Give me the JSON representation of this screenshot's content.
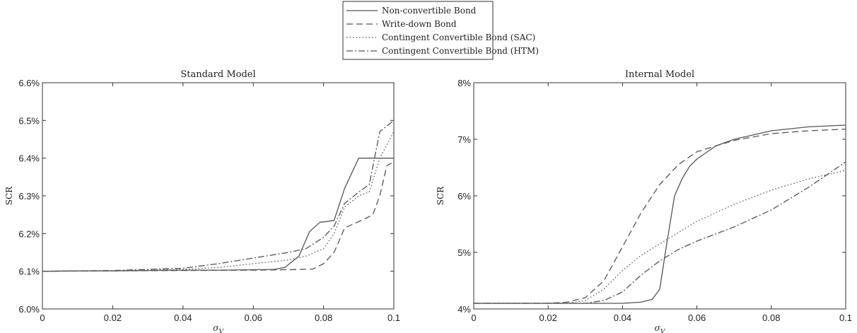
{
  "legend": {
    "items": [
      {
        "label": "Non-convertible Bond",
        "style": "solid"
      },
      {
        "label": "Write-down Bond",
        "style": "dashed"
      },
      {
        "label": "Contingent Convertible Bond (SAC)",
        "style": "dotted"
      },
      {
        "label": "Contingent Convertible Bond (HTM)",
        "style": "dashdot"
      }
    ]
  },
  "chart_data": [
    {
      "type": "line",
      "title": "Standard Model",
      "xlabel": "σ_V",
      "ylabel": "SCR",
      "xlim": [
        0,
        0.1
      ],
      "ylim": [
        6.0,
        6.6
      ],
      "xticks": [
        0,
        0.02,
        0.04,
        0.06,
        0.08,
        0.1
      ],
      "xtick_labels": [
        "0",
        "0.02",
        "0.04",
        "0.06",
        "0.08",
        "0.1"
      ],
      "yticks": [
        6.0,
        6.1,
        6.2,
        6.3,
        6.4,
        6.5,
        6.6
      ],
      "ytick_labels": [
        "6.0%",
        "6.1%",
        "6.2%",
        "6.3%",
        "6.4%",
        "6.5%",
        "6.6%"
      ],
      "series": [
        {
          "name": "Non-convertible Bond",
          "style": "solid",
          "x": [
            0,
            0.01,
            0.02,
            0.03,
            0.04,
            0.05,
            0.06,
            0.066,
            0.069,
            0.073,
            0.076,
            0.079,
            0.081,
            0.083,
            0.086,
            0.09,
            0.095,
            0.1
          ],
          "y": [
            6.1,
            6.101,
            6.101,
            6.102,
            6.103,
            6.103,
            6.104,
            6.105,
            6.11,
            6.14,
            6.205,
            6.23,
            6.232,
            6.235,
            6.32,
            6.4,
            6.4,
            6.4
          ]
        },
        {
          "name": "Write-down Bond",
          "style": "dashed",
          "x": [
            0,
            0.02,
            0.04,
            0.06,
            0.07,
            0.077,
            0.08,
            0.083,
            0.086,
            0.092,
            0.094,
            0.096,
            0.098,
            0.1
          ],
          "y": [
            6.1,
            6.101,
            6.102,
            6.103,
            6.104,
            6.106,
            6.12,
            6.15,
            6.215,
            6.24,
            6.25,
            6.3,
            6.38,
            6.39
          ]
        },
        {
          "name": "Contingent Convertible Bond (SAC)",
          "style": "dotted",
          "x": [
            0,
            0.02,
            0.04,
            0.05,
            0.06,
            0.07,
            0.075,
            0.08,
            0.083,
            0.086,
            0.09,
            0.093,
            0.096,
            0.1
          ],
          "y": [
            6.1,
            6.101,
            6.105,
            6.11,
            6.12,
            6.13,
            6.14,
            6.16,
            6.2,
            6.27,
            6.3,
            6.31,
            6.4,
            6.47
          ]
        },
        {
          "name": "Contingent Convertible Bond (HTM)",
          "style": "dashdot",
          "x": [
            0,
            0.02,
            0.04,
            0.05,
            0.06,
            0.07,
            0.075,
            0.08,
            0.083,
            0.086,
            0.09,
            0.093,
            0.096,
            0.1
          ],
          "y": [
            6.1,
            6.102,
            6.108,
            6.12,
            6.135,
            6.15,
            6.16,
            6.19,
            6.22,
            6.28,
            6.31,
            6.33,
            6.47,
            6.5
          ]
        }
      ]
    },
    {
      "type": "line",
      "title": "Internal Model",
      "xlabel": "σ_V",
      "ylabel": "SCR",
      "xlim": [
        0,
        0.1
      ],
      "ylim": [
        4,
        8
      ],
      "xticks": [
        0,
        0.02,
        0.04,
        0.06,
        0.08,
        0.1
      ],
      "xtick_labels": [
        "0",
        "0.02",
        "0.04",
        "0.06",
        "0.08",
        "0.1"
      ],
      "yticks": [
        4,
        5,
        6,
        7,
        8
      ],
      "ytick_labels": [
        "4%",
        "5%",
        "6%",
        "7%",
        "8%"
      ],
      "series": [
        {
          "name": "Non-convertible Bond",
          "style": "solid",
          "x": [
            0,
            0.02,
            0.04,
            0.045,
            0.048,
            0.05,
            0.052,
            0.054,
            0.056,
            0.058,
            0.06,
            0.065,
            0.07,
            0.08,
            0.09,
            0.1
          ],
          "y": [
            4.1,
            4.1,
            4.1,
            4.12,
            4.17,
            4.35,
            5.2,
            6.0,
            6.3,
            6.52,
            6.65,
            6.88,
            7.0,
            7.15,
            7.22,
            7.25
          ]
        },
        {
          "name": "Write-down Bond",
          "style": "dashed",
          "x": [
            0,
            0.02,
            0.025,
            0.03,
            0.035,
            0.04,
            0.045,
            0.05,
            0.055,
            0.06,
            0.07,
            0.08,
            0.09,
            0.1
          ],
          "y": [
            4.1,
            4.1,
            4.12,
            4.2,
            4.5,
            5.1,
            5.7,
            6.2,
            6.55,
            6.78,
            6.98,
            7.1,
            7.15,
            7.18
          ]
        },
        {
          "name": "Contingent Convertible Bond (SAC)",
          "style": "dotted",
          "x": [
            0,
            0.025,
            0.03,
            0.035,
            0.04,
            0.045,
            0.05,
            0.06,
            0.07,
            0.08,
            0.09,
            0.1
          ],
          "y": [
            4.1,
            4.1,
            4.15,
            4.35,
            4.68,
            4.95,
            5.15,
            5.55,
            5.85,
            6.1,
            6.3,
            6.45
          ]
        },
        {
          "name": "Contingent Convertible Bond (HTM)",
          "style": "dashdot",
          "x": [
            0,
            0.03,
            0.035,
            0.04,
            0.045,
            0.05,
            0.055,
            0.06,
            0.07,
            0.08,
            0.09,
            0.1
          ],
          "y": [
            4.1,
            4.1,
            4.15,
            4.3,
            4.6,
            4.85,
            5.05,
            5.2,
            5.45,
            5.75,
            6.15,
            6.6
          ]
        }
      ]
    }
  ]
}
